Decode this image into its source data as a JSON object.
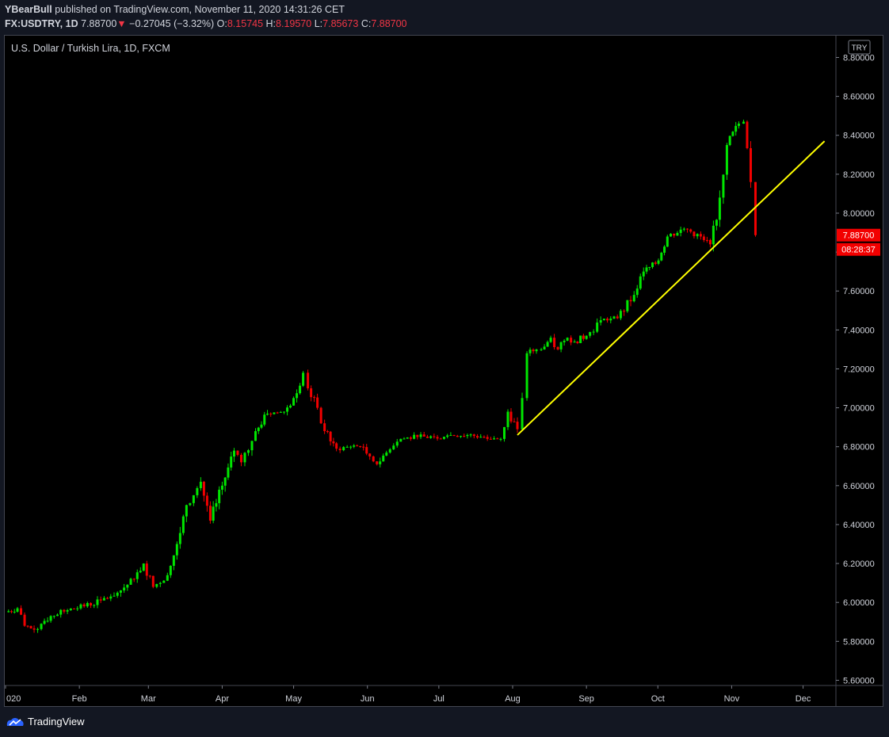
{
  "header": {
    "author": "YBearBull",
    "published_text": "published on TradingView.com, November 11, 2020 14:31:26 CET",
    "symbol": "FX:USDTRY, 1D",
    "last": "7.88700",
    "change_arrow": "▼",
    "change": "−0.27045 (−3.32%)",
    "o_label": "O:",
    "o_value": "8.15745",
    "h_label": "H:",
    "h_value": "8.19570",
    "l_label": "L:",
    "l_value": "7.85673",
    "c_label": "C:",
    "c_value": "7.88700"
  },
  "footer": {
    "brand": "TradingView"
  },
  "colors": {
    "background": "#000000",
    "up": "#00e600",
    "down": "#f20000",
    "trendline": "#ffff00",
    "price_label_bg": "#f20000"
  },
  "chart_data": {
    "type": "candlestick",
    "title": "U.S. Dollar / Turkish Lira, 1D, FXCM",
    "currency_badge": "TRY",
    "price_label": "7.88700",
    "countdown_label": "08:28:37",
    "yticks": [
      "8.80000",
      "8.60000",
      "8.40000",
      "8.20000",
      "8.00000",
      "7.80000",
      "7.60000",
      "7.40000",
      "7.20000",
      "7.00000",
      "6.80000",
      "6.60000",
      "6.40000",
      "6.20000",
      "6.00000",
      "5.80000",
      "5.60000"
    ],
    "xticks": [
      "020",
      "Feb",
      "Mar",
      "Apr",
      "May",
      "Jun",
      "Jul",
      "Aug",
      "Sep",
      "Oct",
      "Nov",
      "Dec"
    ],
    "ylim": [
      5.6,
      8.8
    ],
    "grid": false,
    "trendline": {
      "from": [
        "2020-08-03",
        6.86
      ],
      "to": [
        "2020-12-10",
        8.37
      ]
    },
    "series": [
      {
        "date": "2020-01-01",
        "close": 5.95
      },
      {
        "date": "2020-01-06",
        "close": 5.97
      },
      {
        "date": "2020-01-09",
        "close": 5.88
      },
      {
        "date": "2020-01-13",
        "close": 5.86
      },
      {
        "date": "2020-01-16",
        "close": 5.89
      },
      {
        "date": "2020-01-20",
        "close": 5.93
      },
      {
        "date": "2020-01-27",
        "close": 5.96
      },
      {
        "date": "2020-02-03",
        "close": 5.98
      },
      {
        "date": "2020-02-10",
        "close": 6.01
      },
      {
        "date": "2020-02-17",
        "close": 6.05
      },
      {
        "date": "2020-02-24",
        "close": 6.12
      },
      {
        "date": "2020-02-28",
        "close": 6.2
      },
      {
        "date": "2020-03-03",
        "close": 6.08
      },
      {
        "date": "2020-03-09",
        "close": 6.14
      },
      {
        "date": "2020-03-13",
        "close": 6.3
      },
      {
        "date": "2020-03-17",
        "close": 6.5
      },
      {
        "date": "2020-03-23",
        "close": 6.62
      },
      {
        "date": "2020-03-27",
        "close": 6.42
      },
      {
        "date": "2020-04-01",
        "close": 6.6
      },
      {
        "date": "2020-04-06",
        "close": 6.78
      },
      {
        "date": "2020-04-09",
        "close": 6.72
      },
      {
        "date": "2020-04-15",
        "close": 6.88
      },
      {
        "date": "2020-04-20",
        "close": 6.97
      },
      {
        "date": "2020-04-27",
        "close": 6.98
      },
      {
        "date": "2020-05-01",
        "close": 7.05
      },
      {
        "date": "2020-05-05",
        "close": 7.18
      },
      {
        "date": "2020-05-07",
        "close": 7.1
      },
      {
        "date": "2020-05-11",
        "close": 7.0
      },
      {
        "date": "2020-05-14",
        "close": 6.88
      },
      {
        "date": "2020-05-19",
        "close": 6.79
      },
      {
        "date": "2020-05-25",
        "close": 6.8
      },
      {
        "date": "2020-05-29",
        "close": 6.8
      },
      {
        "date": "2020-06-02",
        "close": 6.75
      },
      {
        "date": "2020-06-05",
        "close": 6.71
      },
      {
        "date": "2020-06-09",
        "close": 6.77
      },
      {
        "date": "2020-06-15",
        "close": 6.84
      },
      {
        "date": "2020-06-22",
        "close": 6.85
      },
      {
        "date": "2020-06-29",
        "close": 6.85
      },
      {
        "date": "2020-07-06",
        "close": 6.86
      },
      {
        "date": "2020-07-13",
        "close": 6.86
      },
      {
        "date": "2020-07-20",
        "close": 6.85
      },
      {
        "date": "2020-07-27",
        "close": 6.84
      },
      {
        "date": "2020-07-30",
        "close": 6.98
      },
      {
        "date": "2020-08-03",
        "close": 6.89
      },
      {
        "date": "2020-08-05",
        "close": 7.05
      },
      {
        "date": "2020-08-07",
        "close": 7.28
      },
      {
        "date": "2020-08-11",
        "close": 7.3
      },
      {
        "date": "2020-08-13",
        "close": 7.3
      },
      {
        "date": "2020-08-17",
        "close": 7.36
      },
      {
        "date": "2020-08-20",
        "close": 7.3
      },
      {
        "date": "2020-08-24",
        "close": 7.36
      },
      {
        "date": "2020-08-27",
        "close": 7.34
      },
      {
        "date": "2020-09-01",
        "close": 7.37
      },
      {
        "date": "2020-09-07",
        "close": 7.45
      },
      {
        "date": "2020-09-14",
        "close": 7.46
      },
      {
        "date": "2020-09-21",
        "close": 7.58
      },
      {
        "date": "2020-09-25",
        "close": 7.7
      },
      {
        "date": "2020-09-30",
        "close": 7.74
      },
      {
        "date": "2020-10-05",
        "close": 7.88
      },
      {
        "date": "2020-10-12",
        "close": 7.92
      },
      {
        "date": "2020-10-19",
        "close": 7.88
      },
      {
        "date": "2020-10-23",
        "close": 7.84
      },
      {
        "date": "2020-10-27",
        "close": 8.08
      },
      {
        "date": "2020-10-30",
        "close": 8.35
      },
      {
        "date": "2020-11-04",
        "close": 8.46
      },
      {
        "date": "2020-11-06",
        "close": 8.47
      },
      {
        "date": "2020-11-09",
        "close": 8.16
      },
      {
        "date": "2020-11-11",
        "close": 7.887
      }
    ]
  }
}
